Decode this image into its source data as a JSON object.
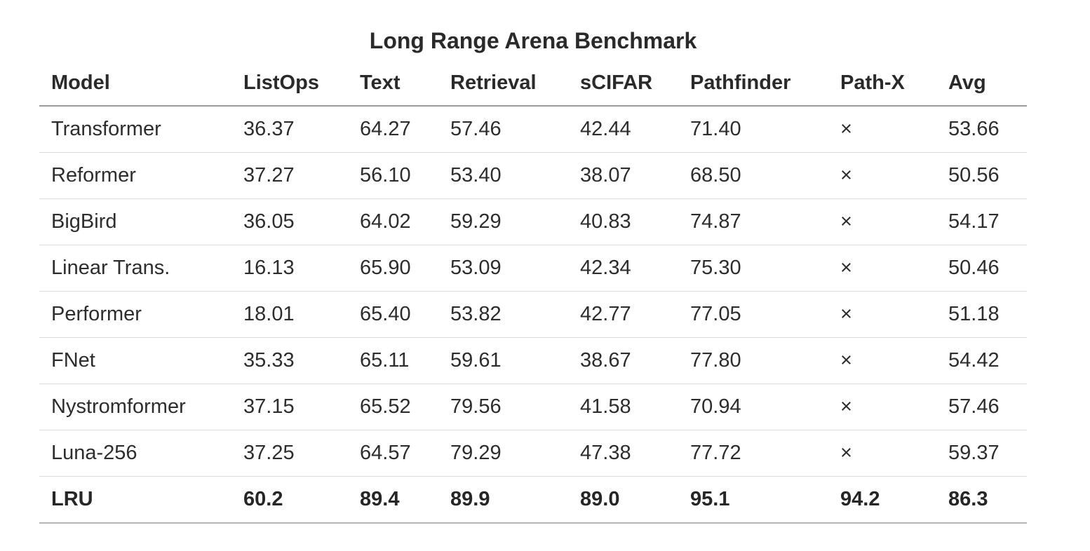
{
  "chart_data": {
    "type": "table",
    "title": "Long Range Arena Benchmark",
    "columns": [
      "Model",
      "ListOps",
      "Text",
      "Retrieval",
      "sCIFAR",
      "Pathfinder",
      "Path-X",
      "Avg"
    ],
    "rows": [
      [
        "Transformer",
        "36.37",
        "64.27",
        "57.46",
        "42.44",
        "71.40",
        "×",
        "53.66"
      ],
      [
        "Reformer",
        "37.27",
        "56.10",
        "53.40",
        "38.07",
        "68.50",
        "×",
        "50.56"
      ],
      [
        "BigBird",
        "36.05",
        "64.02",
        "59.29",
        "40.83",
        "74.87",
        "×",
        "54.17"
      ],
      [
        "Linear Trans.",
        "16.13",
        "65.90",
        "53.09",
        "42.34",
        "75.30",
        "×",
        "50.46"
      ],
      [
        "Performer",
        "18.01",
        "65.40",
        "53.82",
        "42.77",
        "77.05",
        "×",
        "51.18"
      ],
      [
        "FNet",
        "35.33",
        "65.11",
        "59.61",
        "38.67",
        "77.80",
        "×",
        "54.42"
      ],
      [
        "Nystromformer",
        "37.15",
        "65.52",
        "79.56",
        "41.58",
        "70.94",
        "×",
        "57.46"
      ],
      [
        "Luna-256",
        "37.25",
        "64.57",
        "79.29",
        "47.38",
        "77.72",
        "×",
        "59.37"
      ],
      [
        "LRU",
        "60.2",
        "89.4",
        "89.9",
        "89.0",
        "95.1",
        "94.2",
        "86.3"
      ]
    ],
    "highlighted_row": "LRU"
  }
}
